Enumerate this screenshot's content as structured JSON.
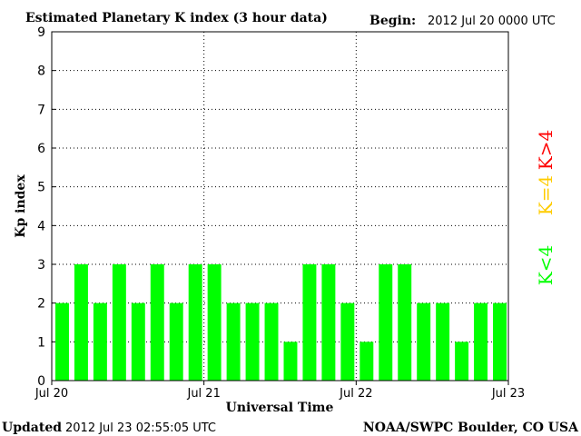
{
  "header": {
    "title": "Estimated Planetary K index (3 hour data)",
    "begin_label": "Begin:",
    "begin_value": "2012 Jul 20 0000 UTC"
  },
  "footer": {
    "updated_label": "Updated",
    "updated_value": "2012 Jul 23 02:55:05 UTC",
    "source": "NOAA/SWPC Boulder, CO USA"
  },
  "legend": {
    "low": "K<4",
    "equal": "K=4",
    "high": "K>4"
  },
  "colors": {
    "low": "#00ff00",
    "equal": "#ffcc00",
    "high": "#ff0000"
  },
  "chart_data": {
    "type": "bar",
    "title": "Estimated Planetary K index (3 hour data)",
    "xlabel": "Universal Time",
    "ylabel": "Kp index",
    "ylim": [
      0,
      9
    ],
    "yticks": [
      "0",
      "1",
      "2",
      "3",
      "4",
      "5",
      "6",
      "7",
      "8",
      "9"
    ],
    "xticks": [
      "Jul 20",
      "Jul 21",
      "Jul 22",
      "Jul 23"
    ],
    "grid": true,
    "values": [
      2,
      3,
      2,
      3,
      2,
      3,
      2,
      3,
      3,
      2,
      2,
      2,
      1,
      3,
      3,
      2,
      1,
      3,
      3,
      2,
      2,
      1,
      2,
      2
    ]
  }
}
